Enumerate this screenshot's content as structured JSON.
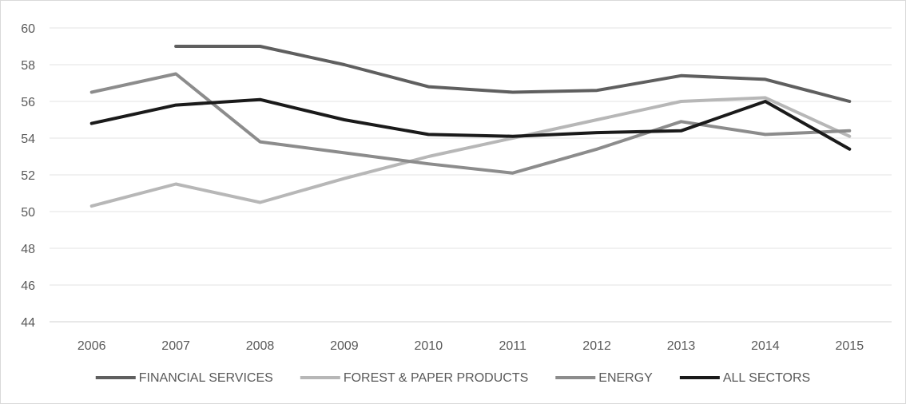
{
  "chart_data": {
    "type": "line",
    "title": "",
    "xlabel": "",
    "ylabel": "",
    "categories": [
      "2006",
      "2007",
      "2008",
      "2009",
      "2010",
      "2011",
      "2012",
      "2013",
      "2014",
      "2015"
    ],
    "ylim": [
      44,
      60
    ],
    "yticks": [
      44,
      46,
      48,
      50,
      52,
      54,
      56,
      58,
      60
    ],
    "grid": true,
    "legend_position": "bottom",
    "series": [
      {
        "name": "FINANCIAL SERVICES",
        "color": "#5f5f5f",
        "values": [
          null,
          59.0,
          59.0,
          58.0,
          56.8,
          56.5,
          56.6,
          57.4,
          57.2,
          56.0
        ]
      },
      {
        "name": "FOREST & PAPER PRODUCTS",
        "color": "#b7b7b7",
        "values": [
          50.3,
          51.5,
          50.5,
          51.8,
          53.0,
          54.0,
          55.0,
          56.0,
          56.2,
          54.1
        ]
      },
      {
        "name": "ENERGY",
        "color": "#8c8c8c",
        "values": [
          56.5,
          57.5,
          53.8,
          53.2,
          52.6,
          52.1,
          53.4,
          54.9,
          54.2,
          54.4
        ]
      },
      {
        "name": "ALL SECTORS",
        "color": "#1a1a1a",
        "values": [
          54.8,
          55.8,
          56.1,
          55.0,
          54.2,
          54.1,
          54.3,
          54.4,
          56.0,
          53.4
        ]
      }
    ]
  }
}
